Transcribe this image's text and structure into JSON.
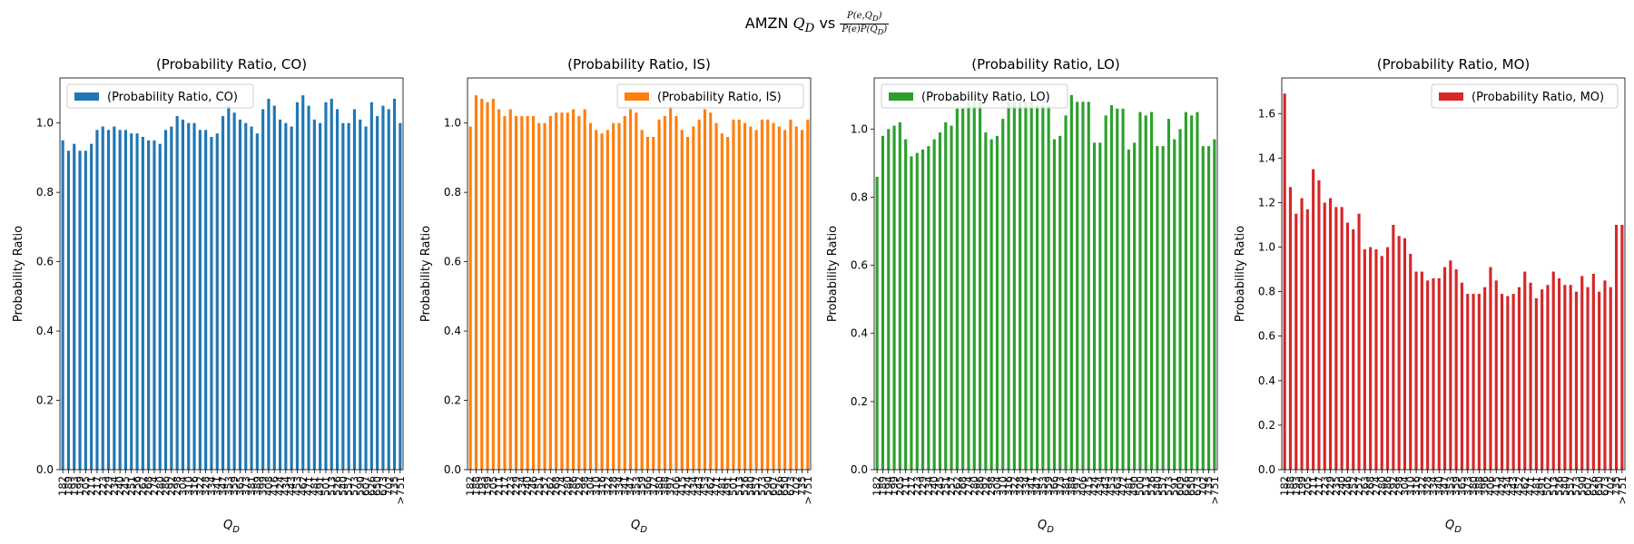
{
  "suptitle": {
    "prefix": "AMZN",
    "symbol": "Q",
    "subscript": "D",
    "vs": "vs",
    "numerator": "P(e,Q",
    "numerator_sub": "D",
    "numerator_close": ")",
    "denominator": "P(e)P(Q",
    "denominator_sub": "D",
    "denominator_close": ")"
  },
  "chart_data": [
    {
      "type": "bar",
      "title": "(Probability Ratio, CO)",
      "legend": "(Probability Ratio, CO)",
      "legend_loc": "upper-left",
      "color": "#1f77b4",
      "xlabel": "Q_D",
      "ylabel": "Probability Ratio",
      "ylim": [
        0,
        1.13
      ],
      "yticks": [
        0.0,
        0.2,
        0.4,
        0.6,
        0.8,
        1.0
      ],
      "categories": [
        "182",
        "189",
        "193",
        "199",
        "205",
        "211",
        "217",
        "223",
        "229",
        "234",
        "240",
        "245",
        "251",
        "256",
        "262",
        "268",
        "274",
        "280",
        "286",
        "292",
        "298",
        "304",
        "310",
        "316",
        "322",
        "328",
        "334",
        "341",
        "347",
        "353",
        "359",
        "365",
        "373",
        "381",
        "389",
        "399",
        "408",
        "416",
        "424",
        "434",
        "443",
        "453",
        "462",
        "471",
        "481",
        "491",
        "501",
        "513",
        "526",
        "540",
        "557",
        "573",
        "590",
        "607",
        "626",
        "650",
        "673",
        "702",
        "735",
        ">751"
      ],
      "values": [
        0.95,
        0.92,
        0.94,
        0.92,
        0.92,
        0.94,
        0.98,
        0.99,
        0.98,
        0.99,
        0.98,
        0.98,
        0.97,
        0.97,
        0.96,
        0.95,
        0.95,
        0.94,
        0.98,
        0.99,
        1.02,
        1.01,
        1.0,
        1.0,
        0.98,
        0.98,
        0.96,
        0.97,
        1.02,
        1.05,
        1.03,
        1.01,
        1.0,
        0.99,
        0.97,
        1.04,
        1.07,
        1.05,
        1.01,
        1.0,
        0.99,
        1.06,
        1.08,
        1.05,
        1.01,
        1.0,
        1.06,
        1.07,
        1.04,
        1.0,
        1.0,
        1.04,
        1.01,
        0.99,
        1.06,
        1.02,
        1.05,
        1.04,
        1.07,
        1.0
      ]
    },
    {
      "type": "bar",
      "title": "(Probability Ratio, IS)",
      "legend": "(Probability Ratio, IS)",
      "legend_loc": "upper-right",
      "color": "#ff7f0e",
      "xlabel": "Q_D",
      "ylabel": "Probability Ratio",
      "ylim": [
        0,
        1.13
      ],
      "yticks": [
        0.0,
        0.2,
        0.4,
        0.6,
        0.8,
        1.0
      ],
      "categories": [
        "182",
        "188",
        "193",
        "199",
        "205",
        "211",
        "217",
        "223",
        "229",
        "234",
        "240",
        "246",
        "251",
        "257",
        "262",
        "268",
        "274",
        "280",
        "286",
        "292",
        "298",
        "304",
        "310",
        "316",
        "322",
        "328",
        "334",
        "341",
        "347",
        "353",
        "359",
        "366",
        "372",
        "380",
        "388",
        "397",
        "406",
        "415",
        "424",
        "434",
        "443",
        "453",
        "462",
        "471",
        "481",
        "491",
        "501",
        "513",
        "526",
        "540",
        "557",
        "573",
        "590",
        "607",
        "626",
        "650",
        "673",
        "702",
        "735",
        ">751"
      ],
      "values": [
        0.99,
        1.08,
        1.07,
        1.06,
        1.07,
        1.04,
        1.02,
        1.04,
        1.02,
        1.02,
        1.02,
        1.02,
        1.0,
        1.0,
        1.02,
        1.03,
        1.03,
        1.03,
        1.04,
        1.02,
        1.04,
        1.0,
        0.98,
        0.97,
        0.98,
        1.0,
        1.0,
        1.02,
        1.04,
        1.03,
        0.98,
        0.96,
        0.96,
        1.01,
        1.02,
        1.05,
        1.02,
        0.98,
        0.96,
        0.99,
        1.01,
        1.04,
        1.03,
        1.0,
        0.97,
        0.96,
        1.01,
        1.01,
        1.0,
        0.99,
        0.98,
        1.01,
        1.01,
        1.0,
        0.99,
        0.98,
        1.01,
        0.99,
        0.98,
        1.01
      ]
    },
    {
      "type": "bar",
      "title": "(Probability Ratio, LO)",
      "legend": "(Probability Ratio, LO)",
      "legend_loc": "upper-left",
      "color": "#2ca02c",
      "xlabel": "Q_D",
      "ylabel": "Probability Ratio",
      "ylim": [
        0,
        1.15
      ],
      "yticks": [
        0.0,
        0.2,
        0.4,
        0.6,
        0.8,
        1.0
      ],
      "categories": [
        "182",
        "189",
        "194",
        "199",
        "205",
        "211",
        "217",
        "223",
        "229",
        "234",
        "240",
        "245",
        "251",
        "257",
        "262",
        "268",
        "274",
        "280",
        "286",
        "292",
        "298",
        "304",
        "310",
        "316",
        "322",
        "328",
        "334",
        "341",
        "347",
        "353",
        "359",
        "366",
        "373",
        "381",
        "388",
        "397",
        "406",
        "415",
        "424",
        "434",
        "443",
        "453",
        "463",
        "472",
        "481",
        "490",
        "500",
        "513",
        "526",
        "540",
        "557",
        "573",
        "591",
        "609",
        "626",
        "650",
        "673",
        "702",
        "735",
        ">751"
      ],
      "values": [
        0.86,
        0.98,
        1.0,
        1.01,
        1.02,
        0.97,
        0.92,
        0.93,
        0.94,
        0.95,
        0.97,
        0.99,
        1.02,
        1.01,
        1.06,
        1.06,
        1.08,
        1.08,
        1.08,
        0.99,
        0.97,
        0.98,
        1.03,
        1.08,
        1.08,
        1.08,
        1.08,
        1.08,
        1.07,
        1.07,
        1.07,
        0.97,
        0.98,
        1.04,
        1.1,
        1.08,
        1.08,
        1.08,
        0.96,
        0.96,
        1.04,
        1.07,
        1.06,
        1.06,
        0.94,
        0.96,
        1.05,
        1.04,
        1.05,
        0.95,
        0.95,
        1.03,
        0.97,
        1.0,
        1.05,
        1.04,
        1.05,
        0.95,
        0.95,
        0.97
      ]
    },
    {
      "type": "bar",
      "title": "(Probability Ratio, MO)",
      "legend": "(Probability Ratio, MO)",
      "legend_loc": "upper-right",
      "color": "#d62728",
      "xlabel": "Q_D",
      "ylabel": "Probability Ratio",
      "ylim": [
        0,
        1.76
      ],
      "yticks": [
        0.0,
        0.2,
        0.4,
        0.6,
        0.8,
        1.0,
        1.2,
        1.4,
        1.6
      ],
      "categories": [
        "182",
        "188",
        "193",
        "199",
        "205",
        "211",
        "217",
        "223",
        "229",
        "235",
        "240",
        "246",
        "252",
        "257",
        "263",
        "268",
        "274",
        "280",
        "286",
        "292",
        "298",
        "304",
        "310",
        "316",
        "322",
        "328",
        "334",
        "340",
        "347",
        "353",
        "359",
        "365",
        "373",
        "380",
        "388",
        "396",
        "406",
        "415",
        "424",
        "434",
        "443",
        "452",
        "462",
        "471",
        "481",
        "491",
        "502",
        "513",
        "526",
        "540",
        "557",
        "573",
        "590",
        "607",
        "626",
        "650",
        "673",
        "702",
        "735",
        ">751"
      ],
      "values": [
        1.69,
        1.27,
        1.15,
        1.22,
        1.17,
        1.35,
        1.3,
        1.2,
        1.22,
        1.18,
        1.18,
        1.11,
        1.08,
        1.15,
        0.99,
        1.0,
        0.99,
        0.96,
        1.0,
        1.1,
        1.05,
        1.04,
        0.97,
        0.89,
        0.89,
        0.85,
        0.86,
        0.86,
        0.91,
        0.94,
        0.9,
        0.84,
        0.79,
        0.79,
        0.79,
        0.82,
        0.91,
        0.85,
        0.79,
        0.78,
        0.79,
        0.82,
        0.89,
        0.84,
        0.77,
        0.81,
        0.83,
        0.89,
        0.86,
        0.83,
        0.83,
        0.8,
        0.87,
        0.82,
        0.88,
        0.8,
        0.85,
        0.82,
        1.1,
        1.1
      ]
    }
  ]
}
